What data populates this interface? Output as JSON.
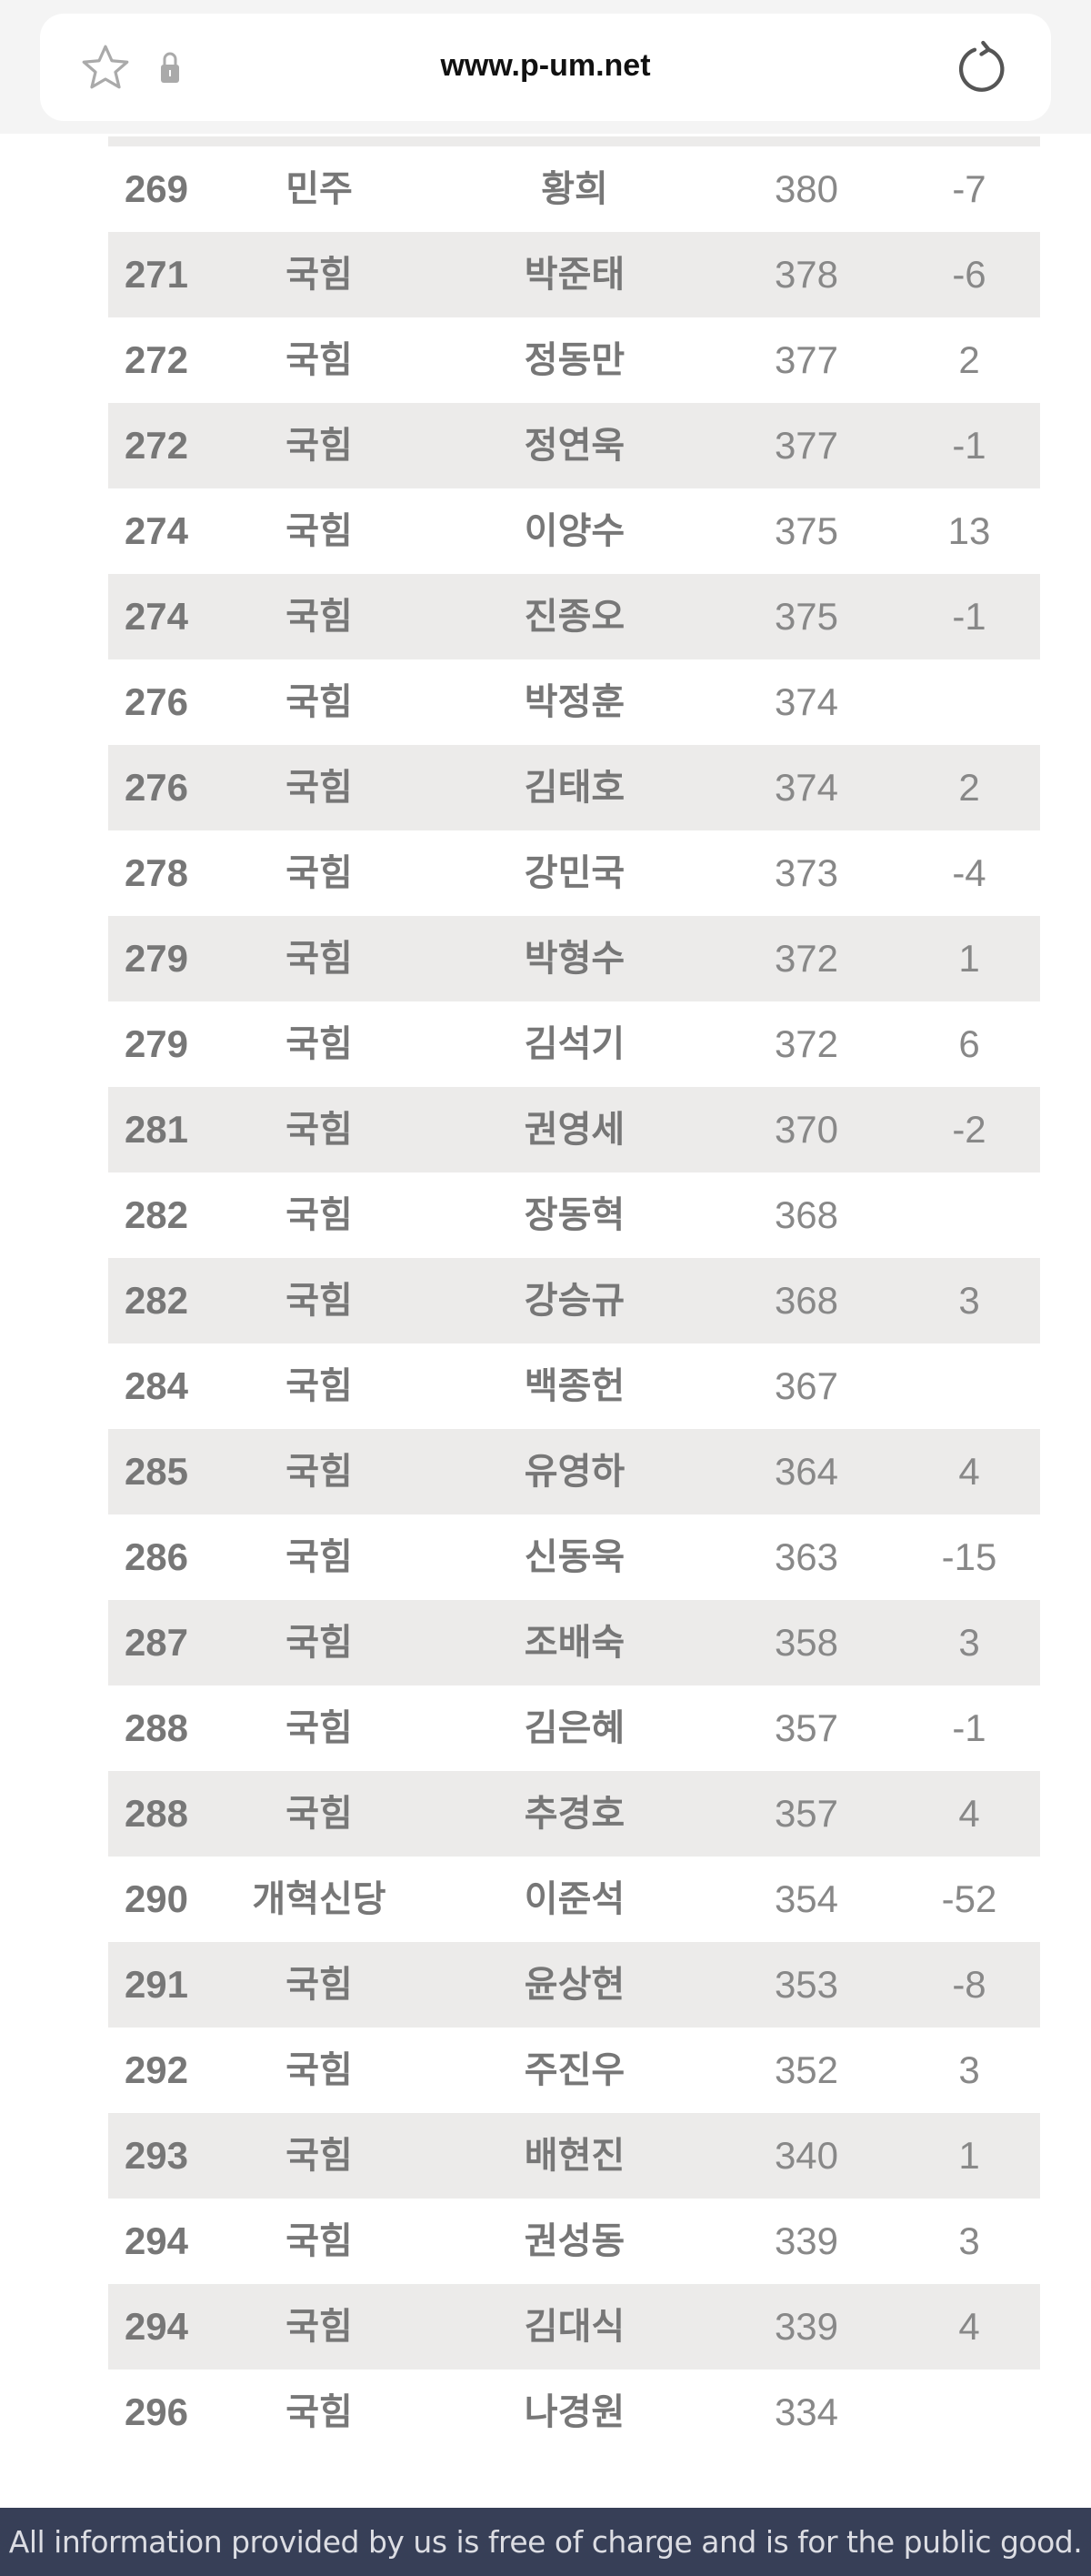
{
  "browser": {
    "url": "www.p-um.net",
    "icons": [
      "star-icon",
      "lock-icon",
      "reload-icon"
    ]
  },
  "rows": [
    {
      "rank": "269",
      "party": "민주",
      "name": "황희",
      "score": "380",
      "change": "-7"
    },
    {
      "rank": "271",
      "party": "국힘",
      "name": "박준태",
      "score": "378",
      "change": "-6"
    },
    {
      "rank": "272",
      "party": "국힘",
      "name": "정동만",
      "score": "377",
      "change": "2"
    },
    {
      "rank": "272",
      "party": "국힘",
      "name": "정연욱",
      "score": "377",
      "change": "-1"
    },
    {
      "rank": "274",
      "party": "국힘",
      "name": "이양수",
      "score": "375",
      "change": "13"
    },
    {
      "rank": "274",
      "party": "국힘",
      "name": "진종오",
      "score": "375",
      "change": "-1"
    },
    {
      "rank": "276",
      "party": "국힘",
      "name": "박정훈",
      "score": "374",
      "change": ""
    },
    {
      "rank": "276",
      "party": "국힘",
      "name": "김태호",
      "score": "374",
      "change": "2"
    },
    {
      "rank": "278",
      "party": "국힘",
      "name": "강민국",
      "score": "373",
      "change": "-4"
    },
    {
      "rank": "279",
      "party": "국힘",
      "name": "박형수",
      "score": "372",
      "change": "1"
    },
    {
      "rank": "279",
      "party": "국힘",
      "name": "김석기",
      "score": "372",
      "change": "6"
    },
    {
      "rank": "281",
      "party": "국힘",
      "name": "권영세",
      "score": "370",
      "change": "-2"
    },
    {
      "rank": "282",
      "party": "국힘",
      "name": "장동혁",
      "score": "368",
      "change": ""
    },
    {
      "rank": "282",
      "party": "국힘",
      "name": "강승규",
      "score": "368",
      "change": "3"
    },
    {
      "rank": "284",
      "party": "국힘",
      "name": "백종헌",
      "score": "367",
      "change": ""
    },
    {
      "rank": "285",
      "party": "국힘",
      "name": "유영하",
      "score": "364",
      "change": "4"
    },
    {
      "rank": "286",
      "party": "국힘",
      "name": "신동욱",
      "score": "363",
      "change": "-15"
    },
    {
      "rank": "287",
      "party": "국힘",
      "name": "조배숙",
      "score": "358",
      "change": "3"
    },
    {
      "rank": "288",
      "party": "국힘",
      "name": "김은혜",
      "score": "357",
      "change": "-1"
    },
    {
      "rank": "288",
      "party": "국힘",
      "name": "추경호",
      "score": "357",
      "change": "4"
    },
    {
      "rank": "290",
      "party": "개혁신당",
      "name": "이준석",
      "score": "354",
      "change": "-52"
    },
    {
      "rank": "291",
      "party": "국힘",
      "name": "윤상현",
      "score": "353",
      "change": "-8"
    },
    {
      "rank": "292",
      "party": "국힘",
      "name": "주진우",
      "score": "352",
      "change": "3"
    },
    {
      "rank": "293",
      "party": "국힘",
      "name": "배현진",
      "score": "340",
      "change": "1"
    },
    {
      "rank": "294",
      "party": "국힘",
      "name": "권성동",
      "score": "339",
      "change": "3"
    },
    {
      "rank": "294",
      "party": "국힘",
      "name": "김대식",
      "score": "339",
      "change": "4"
    },
    {
      "rank": "296",
      "party": "국힘",
      "name": "나경원",
      "score": "334",
      "change": ""
    }
  ],
  "footer": {
    "text": "All information provided by us is free of charge and is for the public good."
  },
  "colors": {
    "stripe": "#ecebea",
    "footer_bg": "#373f57",
    "text": "#777777"
  }
}
